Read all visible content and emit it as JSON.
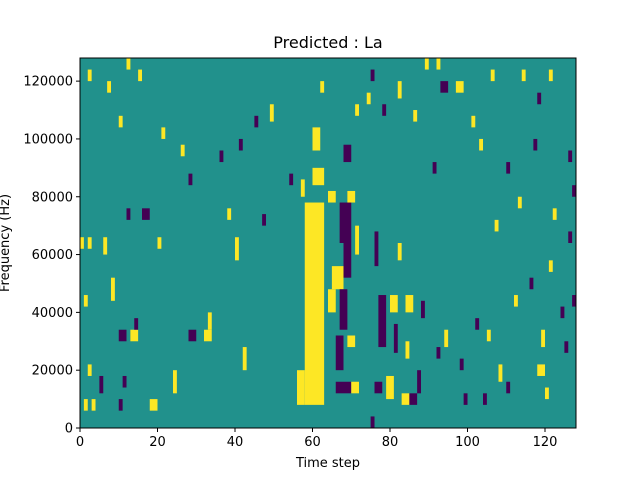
{
  "chart_data": {
    "type": "heatmap",
    "title": "Predicted : La",
    "xlabel": "Time step",
    "ylabel": "Frequency (Hz)",
    "xlim": [
      0,
      128
    ],
    "ylim": [
      0,
      128000
    ],
    "x_ticks": [
      0,
      20,
      40,
      60,
      80,
      100,
      120
    ],
    "x_tick_labels": [
      "0",
      "20",
      "40",
      "60",
      "80",
      "100",
      "120"
    ],
    "y_ticks": [
      0,
      20000,
      40000,
      60000,
      80000,
      100000,
      120000
    ],
    "y_tick_labels": [
      "0",
      "20000",
      "40000",
      "60000",
      "80000",
      "100000",
      "120000"
    ],
    "grid": false,
    "colormap": "viridis",
    "value_levels": [
      -1,
      0,
      1
    ],
    "value_colors": {
      "-1": "#440154",
      "0": "#21918c",
      "1": "#fde725"
    },
    "background_value": 0,
    "cell_size": {
      "time_steps": 1,
      "frequency_hz": 2000
    },
    "cells": [
      {
        "t_start": 58,
        "t_end": 63,
        "f_start": 8000,
        "f_end": 78000,
        "value": 1
      },
      {
        "t_start": 60,
        "t_end": 63,
        "f_start": 84000,
        "f_end": 90000,
        "value": 1
      },
      {
        "t_start": 60,
        "t_end": 62,
        "f_start": 96000,
        "f_end": 104000,
        "value": 1
      },
      {
        "t_start": 64,
        "t_end": 66,
        "f_start": 78000,
        "f_end": 82000,
        "value": 1
      },
      {
        "t_start": 64,
        "t_end": 66,
        "f_start": 40000,
        "f_end": 48000,
        "value": 1
      },
      {
        "t_start": 56,
        "t_end": 58,
        "f_start": 8000,
        "f_end": 20000,
        "value": 1
      },
      {
        "t_start": 65,
        "t_end": 68,
        "f_start": 48000,
        "f_end": 56000,
        "value": 1
      },
      {
        "t_start": 67,
        "t_end": 70,
        "f_start": 64000,
        "f_end": 78000,
        "value": -1
      },
      {
        "t_start": 68,
        "t_end": 70,
        "f_start": 52000,
        "f_end": 64000,
        "value": -1
      },
      {
        "t_start": 67,
        "t_end": 69,
        "f_start": 34000,
        "f_end": 48000,
        "value": -1
      },
      {
        "t_start": 66,
        "t_end": 68,
        "f_start": 20000,
        "f_end": 32000,
        "value": -1
      },
      {
        "t_start": 66,
        "t_end": 70,
        "f_start": 12000,
        "f_end": 16000,
        "value": -1
      },
      {
        "t_start": 70,
        "t_end": 72,
        "f_start": 12000,
        "f_end": 16000,
        "value": 1
      },
      {
        "t_start": 69,
        "t_end": 71,
        "f_start": 28000,
        "f_end": 32000,
        "value": 1
      },
      {
        "t_start": 68,
        "t_end": 70,
        "f_start": 92000,
        "f_end": 98000,
        "value": -1
      },
      {
        "t_start": 69,
        "t_end": 71,
        "f_start": 78000,
        "f_end": 82000,
        "value": 1
      },
      {
        "t_start": 71,
        "t_end": 72,
        "f_start": 60000,
        "f_end": 70000,
        "value": 1
      },
      {
        "t_start": 75,
        "t_end": 76,
        "f_start": 0,
        "f_end": 4000,
        "value": -1
      },
      {
        "t_start": 76,
        "t_end": 77,
        "f_start": 56000,
        "f_end": 68000,
        "value": -1
      },
      {
        "t_start": 77,
        "t_end": 79,
        "f_start": 28000,
        "f_end": 46000,
        "value": -1
      },
      {
        "t_start": 76,
        "t_end": 78,
        "f_start": 12000,
        "f_end": 16000,
        "value": -1
      },
      {
        "t_start": 79,
        "t_end": 81,
        "f_start": 10000,
        "f_end": 18000,
        "value": 1
      },
      {
        "t_start": 80,
        "t_end": 82,
        "f_start": 40000,
        "f_end": 46000,
        "value": 1
      },
      {
        "t_start": 84,
        "t_end": 86,
        "f_start": 40000,
        "f_end": 46000,
        "value": 1
      },
      {
        "t_start": 84,
        "t_end": 85,
        "f_start": 24000,
        "f_end": 30000,
        "value": 1
      },
      {
        "t_start": 83,
        "t_end": 85,
        "f_start": 8000,
        "f_end": 12000,
        "value": 1
      },
      {
        "t_start": 85,
        "t_end": 87,
        "f_start": 8000,
        "f_end": 12000,
        "value": -1
      },
      {
        "t_start": 87,
        "t_end": 88,
        "f_start": 12000,
        "f_end": 20000,
        "value": -1
      },
      {
        "t_start": 81,
        "t_end": 82,
        "f_start": 26000,
        "f_end": 36000,
        "value": -1
      },
      {
        "t_start": 82,
        "t_end": 83,
        "f_start": 58000,
        "f_end": 64000,
        "value": 1
      },
      {
        "t_start": 88,
        "t_end": 89,
        "f_start": 38000,
        "f_end": 44000,
        "value": -1
      },
      {
        "t_start": 93,
        "t_end": 95,
        "f_start": 116000,
        "f_end": 120000,
        "value": -1
      },
      {
        "t_start": 97,
        "t_end": 99,
        "f_start": 116000,
        "f_end": 120000,
        "value": 1
      },
      {
        "t_start": 89,
        "t_end": 90,
        "f_start": 124000,
        "f_end": 128000,
        "value": 1
      },
      {
        "t_start": 92,
        "t_end": 93,
        "f_start": 124000,
        "f_end": 128000,
        "value": 1
      },
      {
        "t_start": 106,
        "t_end": 107,
        "f_start": 120000,
        "f_end": 124000,
        "value": 1
      },
      {
        "t_start": 114,
        "t_end": 115,
        "f_start": 120000,
        "f_end": 124000,
        "value": 1
      },
      {
        "t_start": 121,
        "t_end": 122,
        "f_start": 120000,
        "f_end": 124000,
        "value": 1
      },
      {
        "t_start": 118,
        "t_end": 119,
        "f_start": 112000,
        "f_end": 116000,
        "value": -1
      },
      {
        "t_start": 101,
        "t_end": 102,
        "f_start": 104000,
        "f_end": 108000,
        "value": 1
      },
      {
        "t_start": 117,
        "t_end": 118,
        "f_start": 96000,
        "f_end": 100000,
        "value": -1
      },
      {
        "t_start": 126,
        "t_end": 127,
        "f_start": 92000,
        "f_end": 96000,
        "value": -1
      },
      {
        "t_start": 127,
        "t_end": 128,
        "f_start": 80000,
        "f_end": 84000,
        "value": -1
      },
      {
        "t_start": 118,
        "t_end": 120,
        "f_start": 18000,
        "f_end": 22000,
        "value": 1
      },
      {
        "t_start": 120,
        "t_end": 121,
        "f_start": 10000,
        "f_end": 14000,
        "value": 1
      },
      {
        "t_start": 119,
        "t_end": 120,
        "f_start": 28000,
        "f_end": 34000,
        "value": 1
      },
      {
        "t_start": 124,
        "t_end": 125,
        "f_start": 38000,
        "f_end": 42000,
        "value": -1
      },
      {
        "t_start": 125,
        "t_end": 126,
        "f_start": 26000,
        "f_end": 30000,
        "value": -1
      },
      {
        "t_start": 127,
        "t_end": 128,
        "f_start": 42000,
        "f_end": 46000,
        "value": -1
      },
      {
        "t_start": 1,
        "t_end": 2,
        "f_start": 6000,
        "f_end": 10000,
        "value": 1
      },
      {
        "t_start": 3,
        "t_end": 4,
        "f_start": 6000,
        "f_end": 10000,
        "value": 1
      },
      {
        "t_start": 18,
        "t_end": 20,
        "f_start": 6000,
        "f_end": 10000,
        "value": 1
      },
      {
        "t_start": 10,
        "t_end": 11,
        "f_start": 6000,
        "f_end": 10000,
        "value": -1
      },
      {
        "t_start": 5,
        "t_end": 6,
        "f_start": 12000,
        "f_end": 18000,
        "value": -1
      },
      {
        "t_start": 24,
        "t_end": 25,
        "f_start": 12000,
        "f_end": 20000,
        "value": 1
      },
      {
        "t_start": 2,
        "t_end": 3,
        "f_start": 18000,
        "f_end": 22000,
        "value": 1
      },
      {
        "t_start": 11,
        "t_end": 12,
        "f_start": 14000,
        "f_end": 18000,
        "value": -1
      },
      {
        "t_start": 10,
        "t_end": 12,
        "f_start": 30000,
        "f_end": 34000,
        "value": -1
      },
      {
        "t_start": 13,
        "t_end": 15,
        "f_start": 30000,
        "f_end": 34000,
        "value": 1
      },
      {
        "t_start": 14,
        "t_end": 15,
        "f_start": 34000,
        "f_end": 38000,
        "value": -1
      },
      {
        "t_start": 28,
        "t_end": 30,
        "f_start": 30000,
        "f_end": 34000,
        "value": -1
      },
      {
        "t_start": 32,
        "t_end": 34,
        "f_start": 30000,
        "f_end": 34000,
        "value": 1
      },
      {
        "t_start": 33,
        "t_end": 34,
        "f_start": 34000,
        "f_end": 40000,
        "value": 1
      },
      {
        "t_start": 1,
        "t_end": 2,
        "f_start": 42000,
        "f_end": 46000,
        "value": 1
      },
      {
        "t_start": 8,
        "t_end": 9,
        "f_start": 44000,
        "f_end": 52000,
        "value": 1
      },
      {
        "t_start": 6,
        "t_end": 7,
        "f_start": 60000,
        "f_end": 66000,
        "value": 1
      },
      {
        "t_start": 0,
        "t_end": 1,
        "f_start": 62000,
        "f_end": 66000,
        "value": 1
      },
      {
        "t_start": 2,
        "t_end": 3,
        "f_start": 62000,
        "f_end": 66000,
        "value": 1
      },
      {
        "t_start": 12,
        "t_end": 13,
        "f_start": 72000,
        "f_end": 76000,
        "value": -1
      },
      {
        "t_start": 16,
        "t_end": 18,
        "f_start": 72000,
        "f_end": 76000,
        "value": -1
      },
      {
        "t_start": 20,
        "t_end": 21,
        "f_start": 62000,
        "f_end": 66000,
        "value": 1
      },
      {
        "t_start": 40,
        "t_end": 41,
        "f_start": 58000,
        "f_end": 66000,
        "value": 1
      },
      {
        "t_start": 38,
        "t_end": 39,
        "f_start": 72000,
        "f_end": 76000,
        "value": 1
      },
      {
        "t_start": 42,
        "t_end": 43,
        "f_start": 20000,
        "f_end": 28000,
        "value": 1
      },
      {
        "t_start": 47,
        "t_end": 48,
        "f_start": 70000,
        "f_end": 74000,
        "value": -1
      },
      {
        "t_start": 26,
        "t_end": 27,
        "f_start": 94000,
        "f_end": 98000,
        "value": 1
      },
      {
        "t_start": 21,
        "t_end": 22,
        "f_start": 100000,
        "f_end": 104000,
        "value": 1
      },
      {
        "t_start": 10,
        "t_end": 11,
        "f_start": 104000,
        "f_end": 108000,
        "value": 1
      },
      {
        "t_start": 7,
        "t_end": 8,
        "f_start": 116000,
        "f_end": 120000,
        "value": 1
      },
      {
        "t_start": 2,
        "t_end": 3,
        "f_start": 120000,
        "f_end": 124000,
        "value": 1
      },
      {
        "t_start": 15,
        "t_end": 16,
        "f_start": 120000,
        "f_end": 124000,
        "value": 1
      },
      {
        "t_start": 12,
        "t_end": 13,
        "f_start": 124000,
        "f_end": 128000,
        "value": 1
      },
      {
        "t_start": 45,
        "t_end": 46,
        "f_start": 104000,
        "f_end": 108000,
        "value": -1
      },
      {
        "t_start": 49,
        "t_end": 50,
        "f_start": 106000,
        "f_end": 112000,
        "value": 1
      },
      {
        "t_start": 54,
        "t_end": 55,
        "f_start": 84000,
        "f_end": 88000,
        "value": -1
      },
      {
        "t_start": 57,
        "t_end": 58,
        "f_start": 80000,
        "f_end": 86000,
        "value": 1
      },
      {
        "t_start": 28,
        "t_end": 29,
        "f_start": 84000,
        "f_end": 88000,
        "value": -1
      },
      {
        "t_start": 41,
        "t_end": 42,
        "f_start": 96000,
        "f_end": 100000,
        "value": -1
      },
      {
        "t_start": 36,
        "t_end": 37,
        "f_start": 92000,
        "f_end": 96000,
        "value": -1
      },
      {
        "t_start": 62,
        "t_end": 63,
        "f_start": 116000,
        "f_end": 120000,
        "value": 1
      },
      {
        "t_start": 71,
        "t_end": 72,
        "f_start": 108000,
        "f_end": 112000,
        "value": 1
      },
      {
        "t_start": 74,
        "t_end": 75,
        "f_start": 112000,
        "f_end": 116000,
        "value": 1
      },
      {
        "t_start": 75,
        "t_end": 76,
        "f_start": 120000,
        "f_end": 124000,
        "value": -1
      },
      {
        "t_start": 78,
        "t_end": 79,
        "f_start": 108000,
        "f_end": 112000,
        "value": -1
      },
      {
        "t_start": 82,
        "t_end": 83,
        "f_start": 114000,
        "f_end": 120000,
        "value": 1
      },
      {
        "t_start": 86,
        "t_end": 87,
        "f_start": 106000,
        "f_end": 110000,
        "value": 1
      },
      {
        "t_start": 91,
        "t_end": 92,
        "f_start": 88000,
        "f_end": 92000,
        "value": -1
      },
      {
        "t_start": 103,
        "t_end": 104,
        "f_start": 96000,
        "f_end": 100000,
        "value": 1
      },
      {
        "t_start": 110,
        "t_end": 111,
        "f_start": 88000,
        "f_end": 92000,
        "value": -1
      },
      {
        "t_start": 113,
        "t_end": 114,
        "f_start": 76000,
        "f_end": 80000,
        "value": 1
      },
      {
        "t_start": 107,
        "t_end": 108,
        "f_start": 68000,
        "f_end": 72000,
        "value": 1
      },
      {
        "t_start": 122,
        "t_end": 123,
        "f_start": 72000,
        "f_end": 76000,
        "value": 1
      },
      {
        "t_start": 126,
        "t_end": 127,
        "f_start": 64000,
        "f_end": 68000,
        "value": -1
      },
      {
        "t_start": 121,
        "t_end": 122,
        "f_start": 54000,
        "f_end": 58000,
        "value": 1
      },
      {
        "t_start": 116,
        "t_end": 117,
        "f_start": 48000,
        "f_end": 52000,
        "value": -1
      },
      {
        "t_start": 112,
        "t_end": 113,
        "f_start": 42000,
        "f_end": 46000,
        "value": 1
      },
      {
        "t_start": 105,
        "t_end": 106,
        "f_start": 30000,
        "f_end": 34000,
        "value": 1
      },
      {
        "t_start": 102,
        "t_end": 103,
        "f_start": 34000,
        "f_end": 38000,
        "value": -1
      },
      {
        "t_start": 94,
        "t_end": 95,
        "f_start": 28000,
        "f_end": 34000,
        "value": 1
      },
      {
        "t_start": 92,
        "t_end": 93,
        "f_start": 24000,
        "f_end": 28000,
        "value": -1
      },
      {
        "t_start": 98,
        "t_end": 99,
        "f_start": 20000,
        "f_end": 24000,
        "value": -1
      },
      {
        "t_start": 108,
        "t_end": 109,
        "f_start": 16000,
        "f_end": 22000,
        "value": 1
      },
      {
        "t_start": 104,
        "t_end": 105,
        "f_start": 8000,
        "f_end": 12000,
        "value": -1
      },
      {
        "t_start": 99,
        "t_end": 100,
        "f_start": 8000,
        "f_end": 12000,
        "value": -1
      },
      {
        "t_start": 110,
        "t_end": 111,
        "f_start": 12000,
        "f_end": 16000,
        "value": -1
      }
    ]
  }
}
